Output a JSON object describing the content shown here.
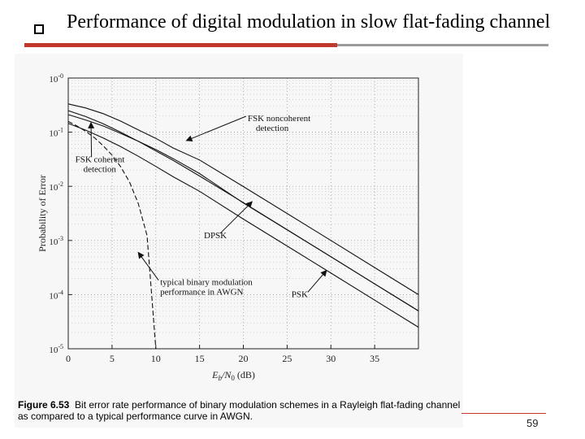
{
  "slide": {
    "title": "Performance of digital modulation in slow flat-fading channel",
    "page_number": "59"
  },
  "figure": {
    "caption_label": "Figure 6.53",
    "caption_text": "Bit error rate performance of binary modulation schemes in a Rayleigh flat-fading channel as compared to a typical performance curve in AWGN."
  },
  "chart_data": {
    "type": "line",
    "xlabel_main": "E",
    "xlabel_sub": "b",
    "xlabel_slash": "/N",
    "xlabel_sub2": "0",
    "xlabel_unit": "(dB)",
    "ylabel": "Probability of Error",
    "xlim": [
      0,
      40
    ],
    "ylim": [
      1e-05,
      1
    ],
    "yscale": "log",
    "xticks": [
      0,
      5,
      10,
      15,
      20,
      25,
      30,
      35
    ],
    "yticks": [
      {
        "value": 1,
        "mantissa": "10",
        "exp": "-0"
      },
      {
        "value": 0.1,
        "mantissa": "10",
        "exp": "-1"
      },
      {
        "value": 0.01,
        "mantissa": "10",
        "exp": "-2"
      },
      {
        "value": 0.001,
        "mantissa": "10",
        "exp": "-3"
      },
      {
        "value": 0.0001,
        "mantissa": "10",
        "exp": "-4"
      },
      {
        "value": 1e-05,
        "mantissa": "10",
        "exp": "-5"
      }
    ],
    "grid": true,
    "series": [
      {
        "name": "FSK noncoherent detection",
        "style": "solid",
        "x": [
          0,
          2,
          4,
          6,
          8,
          10,
          12,
          15,
          20,
          25,
          30,
          35,
          40
        ],
        "y": [
          0.333,
          0.28,
          0.22,
          0.16,
          0.11,
          0.0769,
          0.051,
          0.0307,
          0.0099,
          0.00315,
          0.000999,
          0.000316,
          0.0001
        ]
      },
      {
        "name": "FSK coherent detection",
        "style": "solid",
        "x": [
          0,
          2,
          4,
          6,
          8,
          10,
          12,
          15,
          20,
          25,
          30,
          35,
          40
        ],
        "y": [
          0.211,
          0.168,
          0.13,
          0.095,
          0.068,
          0.0477,
          0.0324,
          0.0172,
          0.00493,
          0.00158,
          0.0005,
          0.000158,
          5e-05
        ]
      },
      {
        "name": "DPSK",
        "style": "solid",
        "x": [
          0,
          2,
          4,
          6,
          8,
          10,
          12,
          15,
          20,
          25,
          30,
          35,
          40
        ],
        "y": [
          0.25,
          0.194,
          0.143,
          0.1,
          0.068,
          0.045,
          0.03,
          0.0155,
          0.005,
          0.00158,
          0.0005,
          0.000158,
          5e-05
        ]
      },
      {
        "name": "PSK",
        "style": "solid",
        "x": [
          0,
          2,
          4,
          6,
          8,
          10,
          12,
          15,
          20,
          25,
          30,
          35,
          40
        ],
        "y": [
          0.146,
          0.109,
          0.078,
          0.054,
          0.036,
          0.0233,
          0.015,
          0.0081,
          0.00248,
          0.00079,
          0.00025,
          7.9e-05,
          2.5e-05
        ]
      },
      {
        "name": "typical binary modulation performance in AWGN",
        "style": "dashed",
        "x": [
          0,
          1,
          2,
          3,
          4,
          5,
          6,
          7,
          8,
          9,
          10
        ],
        "y": [
          0.158,
          0.13,
          0.104,
          0.079,
          0.056,
          0.0377,
          0.0229,
          0.012,
          0.0048,
          0.00123,
          1e-05
        ]
      }
    ],
    "annotations": [
      {
        "text": "FSK noncoherent",
        "text2": "detection",
        "x": 20.5,
        "y": 0.16,
        "arrow_x": 13.5,
        "arrow_y": 0.07
      },
      {
        "text": "FSK coherent",
        "text2": "detection",
        "x": 0.8,
        "y": 0.028,
        "arrow_x": 2.6,
        "arrow_y": 0.15
      },
      {
        "text": "DPSK",
        "x": 15.5,
        "y": 0.0011,
        "arrow_x": 21,
        "arrow_y": 0.0052
      },
      {
        "text": "PSK",
        "x": 25.5,
        "y": 9e-05,
        "arrow_x": 29.5,
        "arrow_y": 0.00028
      },
      {
        "text": "typical binary modulation",
        "text2": "performance in AWGN",
        "x": 10.5,
        "y": 0.00015,
        "arrow_x": 8,
        "arrow_y": 0.0006
      }
    ]
  }
}
